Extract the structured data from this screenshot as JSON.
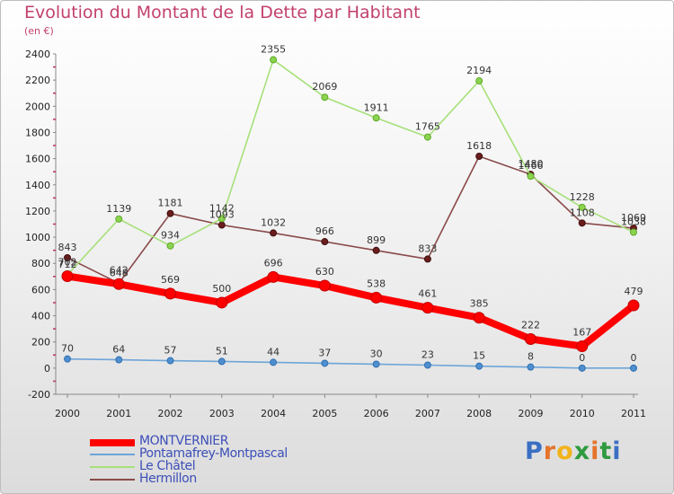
{
  "title": "Evolution du Montant de la Dette par Habitant",
  "subtitle": "(en €)",
  "logo": {
    "text": "Proxiti",
    "colors": [
      "#3a6fc4",
      "#e5742b",
      "#f2b31b",
      "#2f9a3f",
      "#e5742b",
      "#2f9a3f",
      "#3a6fc4"
    ]
  },
  "chart_data": {
    "type": "line",
    "x": [
      "2000",
      "2001",
      "2002",
      "2003",
      "2004",
      "2005",
      "2006",
      "2007",
      "2008",
      "2009",
      "2010",
      "2011"
    ],
    "ylim": [
      -200,
      2400
    ],
    "yticks": [
      "-200",
      "0",
      "200",
      "400",
      "600",
      "800",
      "1000",
      "1200",
      "1400",
      "1600",
      "1800",
      "2000",
      "2200",
      "2400"
    ],
    "grid": false,
    "legend_position": "bottom-left",
    "series": [
      {
        "name": "MONTVERNIER",
        "color": "#ff0000",
        "values": [
          702,
          642,
          569,
          500,
          696,
          630,
          538,
          461,
          385,
          222,
          167,
          479
        ],
        "labels": [
          "702",
          "642",
          "569",
          "500",
          "696",
          "630",
          "538",
          "461",
          "385",
          "222",
          "167",
          "479"
        ]
      },
      {
        "name": "Pontamafrey-Montpascal",
        "color": "#6da5d8",
        "values": [
          70,
          64,
          57,
          51,
          44,
          37,
          30,
          23,
          15,
          8,
          0,
          0
        ],
        "labels": [
          "70",
          "64",
          "57",
          "51",
          "44",
          "37",
          "30",
          "23",
          "15",
          "8",
          "0",
          "0"
        ]
      },
      {
        "name": "Le Châtel",
        "color": "#a6e07a",
        "values": [
          712,
          1139,
          934,
          1142,
          2355,
          2069,
          1911,
          1765,
          2194,
          1466,
          1228,
          1038
        ],
        "labels": [
          "712",
          "1139",
          "934",
          "1142",
          "2355",
          "2069",
          "1911",
          "1765",
          "2194",
          "1466",
          "1228",
          "1038"
        ]
      },
      {
        "name": "Hermillon",
        "color": "#8a4b4b",
        "values": [
          843,
          648,
          1181,
          1093,
          1032,
          966,
          899,
          833,
          1618,
          1480,
          1108,
          1069
        ],
        "labels": [
          "843",
          "648",
          "1181",
          "1093",
          "1032",
          "966",
          "899",
          "833",
          "1618",
          "1480",
          "1108",
          "1069"
        ]
      }
    ]
  }
}
